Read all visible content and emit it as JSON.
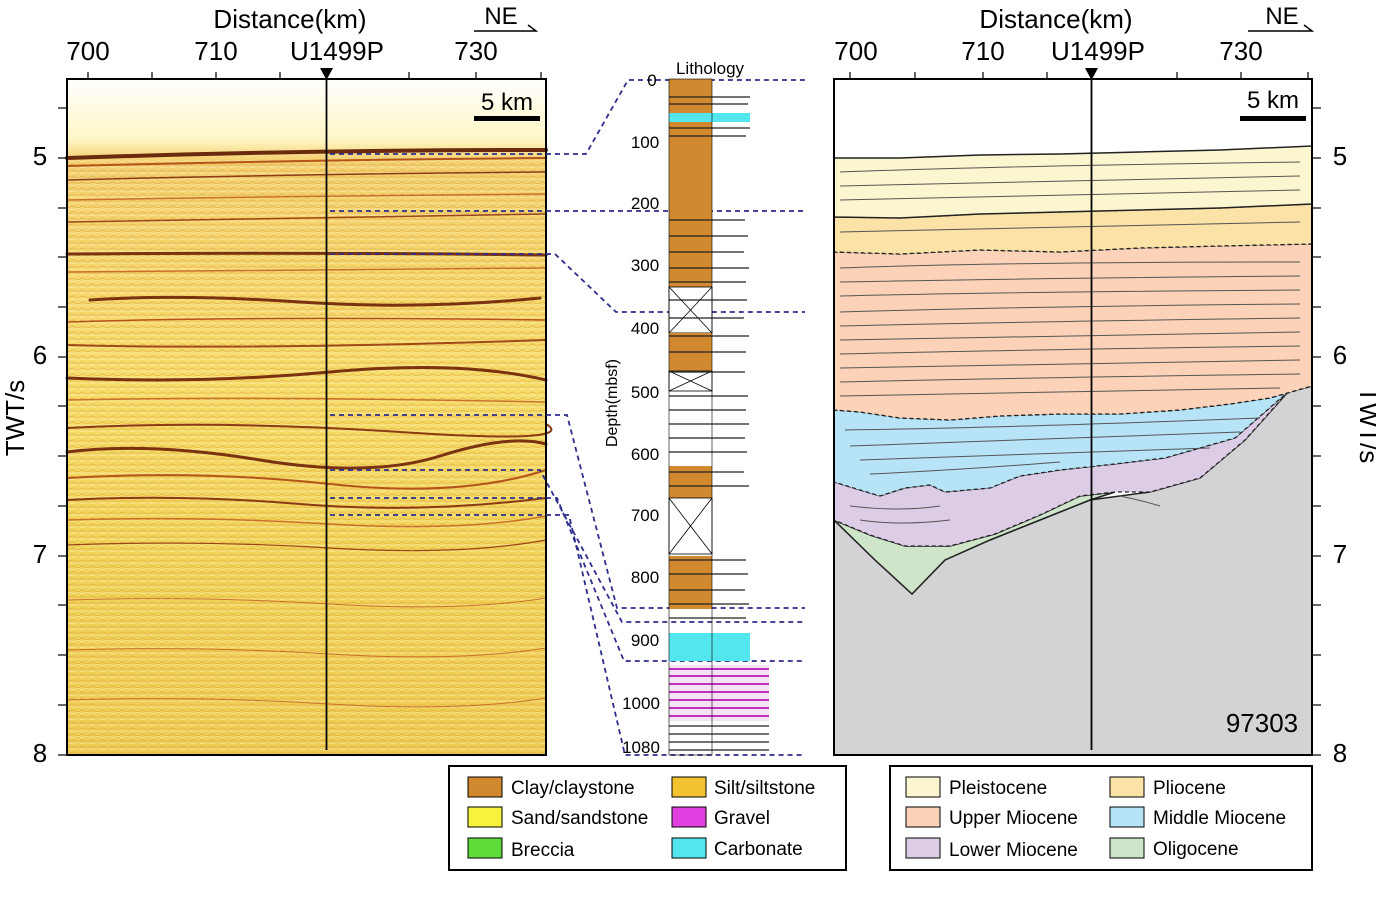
{
  "left_panel": {
    "x_axis_title": "Distance(km)",
    "x_ticks": [
      "700",
      "710",
      "730"
    ],
    "site_label": "U1499P",
    "direction": "NE",
    "scale_bar": "5 km",
    "y_axis_title": "TWT/s",
    "y_ticks": [
      "5",
      "6",
      "7",
      "8"
    ]
  },
  "center_column": {
    "title": "Lithology",
    "depth_axis_title": "Depth(mbsf)",
    "depth_ticks": [
      "0",
      "100",
      "200",
      "300",
      "400",
      "500",
      "600",
      "700",
      "800",
      "900",
      "1000",
      "1080"
    ]
  },
  "right_panel": {
    "x_axis_title": "Distance(km)",
    "x_ticks": [
      "700",
      "710",
      "730"
    ],
    "site_label": "U1499P",
    "direction": "NE",
    "scale_bar": "5 km",
    "y_axis_title": "TWT/s",
    "y_ticks": [
      "5",
      "6",
      "7",
      "8"
    ],
    "line_id": "97303"
  },
  "lithology_legend": [
    {
      "label": "Clay/claystone",
      "color": "#d0892e"
    },
    {
      "label": "Silt/siltstone",
      "color": "#f2c230"
    },
    {
      "label": "Sand/sandstone",
      "color": "#f7f23b"
    },
    {
      "label": "Gravel",
      "color": "#e23fe0"
    },
    {
      "label": "Breccia",
      "color": "#5fdc3a"
    },
    {
      "label": "Carbonate",
      "color": "#54e6ee"
    }
  ],
  "age_legend": [
    {
      "label": "Pleistocene",
      "color": "#fbf6cf"
    },
    {
      "label": "Pliocene",
      "color": "#fbe2a6"
    },
    {
      "label": "Upper Miocene",
      "color": "#fcd3b8"
    },
    {
      "label": "Middle Miocene",
      "color": "#b6e3f6"
    },
    {
      "label": "Lower Miocene",
      "color": "#ddcce6"
    },
    {
      "label": "Oligocene",
      "color": "#cfe5c9"
    }
  ]
}
